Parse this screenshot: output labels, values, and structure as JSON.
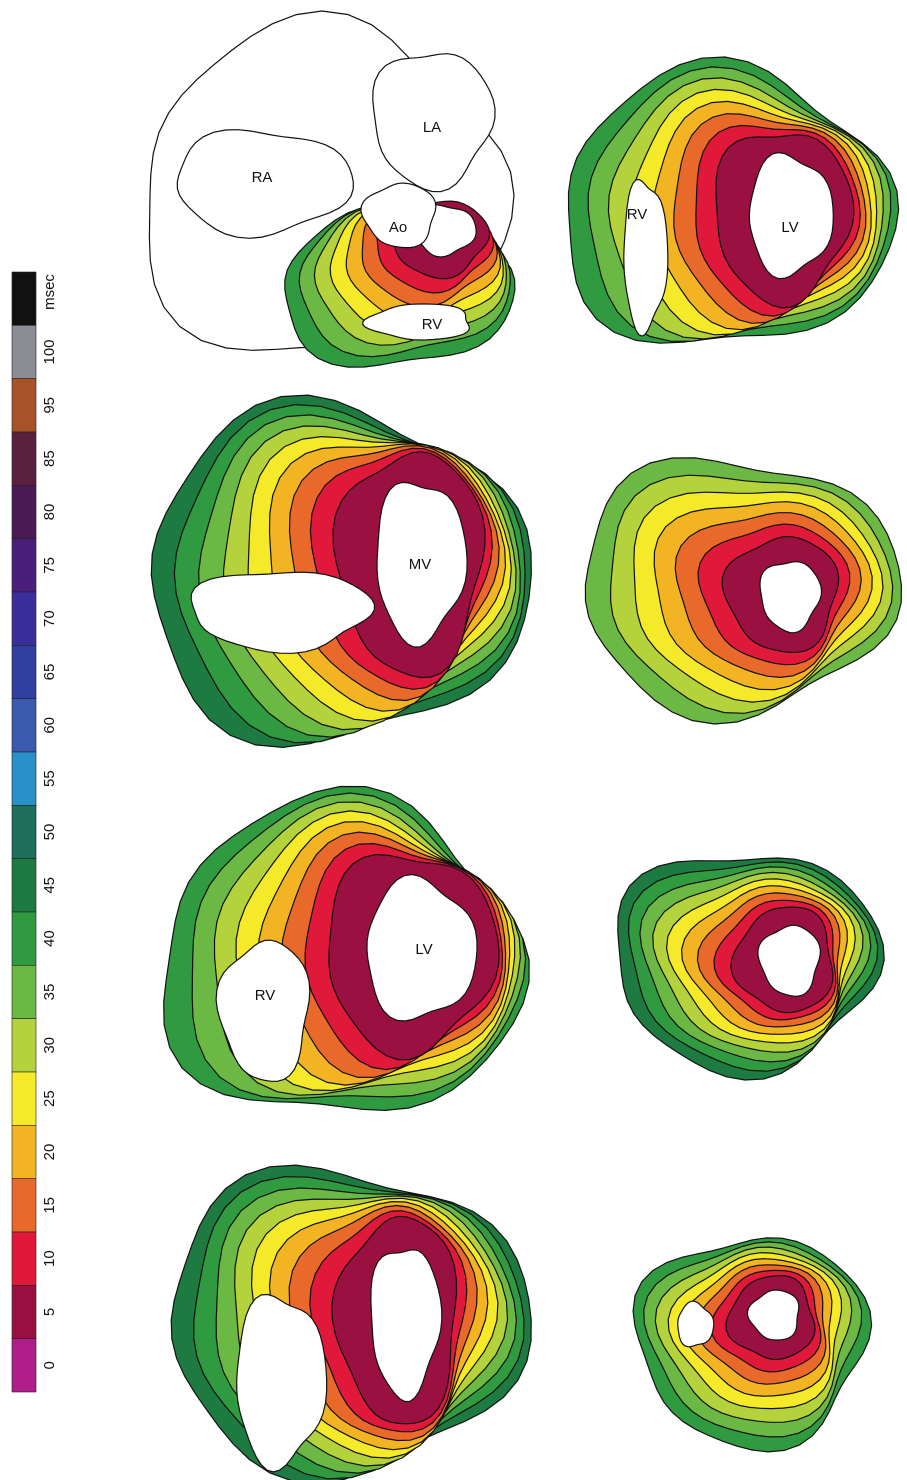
{
  "colorbar": {
    "unit": "msec",
    "labels": [
      "100",
      "95",
      "85",
      "80",
      "75",
      "70",
      "65",
      "60",
      "55",
      "50",
      "45",
      "40",
      "35",
      "30",
      "25",
      "20",
      "15",
      "10",
      "5",
      "0"
    ]
  },
  "panels": [
    [
      "RA",
      "LA",
      "Ao",
      "RV"
    ],
    [
      "RV",
      "LV"
    ],
    [
      "MV"
    ],
    [
      "LV",
      "RV"
    ]
  ]
}
